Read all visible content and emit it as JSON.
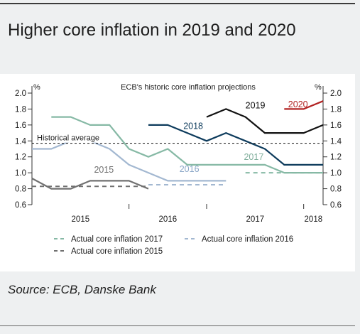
{
  "title": "Higher core inflation in 2019 and 2020",
  "source": "Source: ECB, Danske Bank",
  "chart_data": {
    "type": "line",
    "subtitle": "ECB's historic core inflation projections",
    "ylabel_left": "%",
    "ylabel_right": "%",
    "ylim": [
      0.6,
      2.0
    ],
    "yticks": [
      "0.6",
      "0.8",
      "1.0",
      "1.2",
      "1.4",
      "1.6",
      "1.8",
      "2.0"
    ],
    "xticks": [
      "2015",
      "2016",
      "2017",
      "2018"
    ],
    "annotation": "Historical average",
    "series": [
      {
        "name": "2015",
        "color": "#707070",
        "style": "solid",
        "x": [
          2014.25,
          2014.5,
          2014.75,
          2015.0,
          2015.25,
          2015.5,
          2015.75
        ],
        "y": [
          0.93,
          0.8,
          0.8,
          0.9,
          0.9,
          0.9,
          0.8
        ]
      },
      {
        "name": "2016",
        "color": "#a3b8d1",
        "style": "solid",
        "x": [
          2014.25,
          2014.5,
          2014.75,
          2015.0,
          2015.25,
          2015.5,
          2015.75,
          2016.0,
          2016.25,
          2016.5,
          2016.75
        ],
        "y": [
          1.3,
          1.3,
          1.4,
          1.4,
          1.3,
          1.1,
          1.0,
          0.9,
          0.9,
          0.9,
          0.9
        ]
      },
      {
        "name": "2017",
        "color": "#86b9a5",
        "style": "solid",
        "x": [
          2014.5,
          2014.75,
          2015.0,
          2015.25,
          2015.5,
          2015.75,
          2016.0,
          2016.25,
          2016.5,
          2016.75,
          2017.0,
          2017.25,
          2017.5,
          2017.75,
          2018.0
        ],
        "y": [
          1.7,
          1.7,
          1.6,
          1.6,
          1.3,
          1.2,
          1.3,
          1.1,
          1.1,
          1.1,
          1.1,
          1.1,
          1.0,
          1.0,
          1.0
        ]
      },
      {
        "name": "2018",
        "color": "#0d3b5c",
        "style": "solid",
        "x": [
          2015.75,
          2016.0,
          2016.25,
          2016.5,
          2016.75,
          2017.0,
          2017.25,
          2017.5,
          2017.75,
          2018.0
        ],
        "y": [
          1.6,
          1.6,
          1.5,
          1.4,
          1.5,
          1.4,
          1.3,
          1.1,
          1.1,
          1.1
        ]
      },
      {
        "name": "2019",
        "color": "#111111",
        "style": "solid",
        "x": [
          2016.5,
          2016.75,
          2017.0,
          2017.25,
          2017.5,
          2017.75,
          2018.0
        ],
        "y": [
          1.7,
          1.8,
          1.7,
          1.5,
          1.5,
          1.5,
          1.6
        ]
      },
      {
        "name": "2020",
        "color": "#b22222",
        "style": "solid",
        "x": [
          2017.5,
          2017.75,
          2018.0
        ],
        "y": [
          1.8,
          1.8,
          1.9
        ]
      },
      {
        "name": "Historical average",
        "color": "#111111",
        "style": "dashed",
        "x": [
          2014.25,
          2018.0
        ],
        "y": [
          1.37,
          1.37
        ]
      },
      {
        "name": "Actual core inflation 2015",
        "color": "#707070",
        "style": "dashed",
        "x": [
          2014.25,
          2015.75
        ],
        "y": [
          0.83,
          0.83
        ]
      },
      {
        "name": "Actual core inflation 2016",
        "color": "#a3b8d1",
        "style": "dashed",
        "x": [
          2015.75,
          2016.75
        ],
        "y": [
          0.85,
          0.85
        ]
      },
      {
        "name": "Actual core inflation 2017",
        "color": "#86b9a5",
        "style": "dashed",
        "x": [
          2017.0,
          2018.0
        ],
        "y": [
          1.0,
          1.0
        ]
      }
    ],
    "series_labels": [
      {
        "text": "2015",
        "series": "2015"
      },
      {
        "text": "2016",
        "series": "2016"
      },
      {
        "text": "2017",
        "series": "2017"
      },
      {
        "text": "2018",
        "series": "2018"
      },
      {
        "text": "2019",
        "series": "2019"
      },
      {
        "text": "2020",
        "series": "2020"
      }
    ],
    "legend": [
      {
        "text": "Actual core inflation 2017",
        "color": "#86b9a5"
      },
      {
        "text": "Actual core inflation 2016",
        "color": "#a3b8d1"
      },
      {
        "text": "Actual core inflation 2015",
        "color": "#707070"
      }
    ]
  }
}
